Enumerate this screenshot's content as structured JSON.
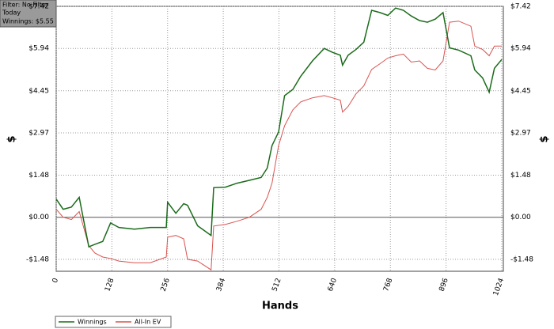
{
  "info_box": {
    "lines": [
      "Filter: No Filter",
      "Today",
      "Winnings: $5.55"
    ]
  },
  "chart_data": {
    "type": "line",
    "x_label": "Hands",
    "y_label": "$",
    "x": [
      0,
      16,
      35,
      53,
      75,
      89,
      107,
      125,
      144,
      180,
      216,
      253,
      256,
      275,
      293,
      302,
      325,
      356,
      362,
      389,
      416,
      444,
      471,
      485,
      496,
      511,
      525,
      544,
      562,
      589,
      616,
      635,
      653,
      658,
      671,
      689,
      707,
      725,
      744,
      762,
      780,
      798,
      816,
      835,
      853,
      871,
      889,
      904,
      925,
      953,
      962,
      980,
      995,
      1007,
      1024
    ],
    "series": [
      {
        "name": "Winnings",
        "color": "#1a6b1a",
        "values": [
          0.64,
          0.28,
          0.36,
          0.7,
          -1.04,
          -0.95,
          -0.85,
          -0.2,
          -0.36,
          -0.42,
          -0.36,
          -0.36,
          0.53,
          0.14,
          0.48,
          0.42,
          -0.3,
          -0.64,
          1.04,
          1.06,
          1.2,
          1.3,
          1.4,
          1.73,
          2.52,
          3.0,
          4.28,
          4.5,
          4.96,
          5.5,
          5.94,
          5.8,
          5.7,
          5.35,
          5.7,
          5.9,
          6.16,
          7.28,
          7.2,
          7.1,
          7.36,
          7.28,
          7.08,
          6.92,
          6.86,
          6.97,
          7.2,
          5.96,
          5.88,
          5.68,
          5.18,
          4.9,
          4.4,
          5.24,
          5.55
        ]
      },
      {
        "name": "All-In EV",
        "color": "#d9534f",
        "values": [
          0.28,
          0,
          -0.08,
          0.2,
          -1.0,
          -1.26,
          -1.4,
          -1.45,
          -1.54,
          -1.6,
          -1.6,
          -1.4,
          -0.7,
          -0.64,
          -0.76,
          -1.48,
          -1.54,
          -1.85,
          -0.31,
          -0.25,
          -0.14,
          0,
          0.28,
          0.7,
          1.2,
          2.52,
          3.22,
          3.78,
          4.06,
          4.2,
          4.28,
          4.2,
          4.12,
          3.7,
          3.9,
          4.34,
          4.62,
          5.2,
          5.4,
          5.6,
          5.68,
          5.74,
          5.46,
          5.5,
          5.24,
          5.18,
          5.5,
          6.86,
          6.9,
          6.72,
          6.02,
          5.9,
          5.68,
          6.02,
          6.02
        ]
      }
    ],
    "xlim": [
      0,
      1024
    ],
    "xticks": [
      0,
      128,
      256,
      384,
      512,
      640,
      768,
      896,
      1024
    ],
    "ylim": [
      -1.9,
      7.42
    ],
    "yticks": [
      {
        "value": -1.48,
        "label": "-$1.48"
      },
      {
        "value": 0,
        "label": "$0.00"
      },
      {
        "value": 1.48,
        "label": "$1.48"
      },
      {
        "value": 2.97,
        "label": "$2.97"
      },
      {
        "value": 4.45,
        "label": "$4.45"
      },
      {
        "value": 5.94,
        "label": "$5.94"
      },
      {
        "value": 7.42,
        "label": "$7.42"
      }
    ],
    "grid": true
  }
}
